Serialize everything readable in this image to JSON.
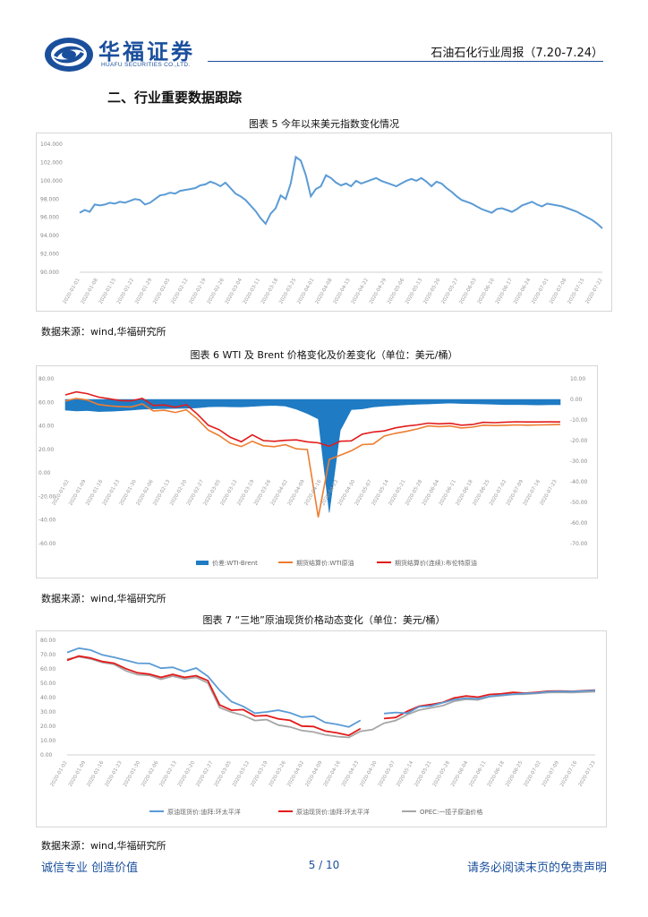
{
  "header": {
    "brand_cn": "华福证券",
    "brand_en": "HUAFU SECURITIES CO.,LTD.",
    "report_title": "石油石化行业周报（7.20-7.24）",
    "logo_color": "#1a4f9c"
  },
  "section_title": "二、行业重要数据跟踪",
  "figures": [
    {
      "title": "图表 5  今年以来美元指数变化情况",
      "source": "数据来源：wind,华福研究所"
    },
    {
      "title": "图表 6 WTI 及 Brent 价格变化及价差变化（单位：美元/桶）",
      "source": "数据来源：wind,华福研究所"
    },
    {
      "title": "图表 7  “三地”原油现货价格动态变化（单位：美元/桶）",
      "source": "数据来源：wind,华福研究所"
    }
  ],
  "footer": {
    "left": "诚信专业  创造价值",
    "page": "5  /  10",
    "right": "请务必阅读末页的免责声明"
  },
  "chart_data": [
    {
      "type": "line",
      "colors": [
        "#5b9bd5"
      ],
      "ylim": [
        90,
        104
      ],
      "yticks": [
        "104.000",
        "102.000",
        "100.000",
        "98.000",
        "96.000",
        "94.000",
        "92.000",
        "90.000"
      ],
      "xticks": [
        "2020-01-01",
        "2020-01-08",
        "2020-01-15",
        "2020-01-22",
        "2020-01-29",
        "2020-02-05",
        "2020-02-12",
        "2020-02-19",
        "2020-02-26",
        "2020-03-04",
        "2020-03-11",
        "2020-03-18",
        "2020-03-25",
        "2020-04-01",
        "2020-04-08",
        "2020-04-15",
        "2020-04-22",
        "2020-04-29",
        "2020-05-06",
        "2020-05-13",
        "2020-05-20",
        "2020-05-27",
        "2020-06-03",
        "2020-06-10",
        "2020-06-17",
        "2020-06-24",
        "2020-07-01",
        "2020-07-08",
        "2020-07-15",
        "2020-07-22"
      ],
      "series": [
        {
          "values": [
            96.5,
            96.8,
            96.6,
            97.4,
            97.3,
            97.4,
            97.6,
            97.5,
            97.7,
            97.6,
            97.8,
            98.0,
            97.9,
            97.4,
            97.6,
            98.0,
            98.4,
            98.5,
            98.7,
            98.6,
            98.9,
            99.0,
            99.1,
            99.2,
            99.5,
            99.6,
            99.9,
            99.7,
            99.4,
            99.8,
            99.2,
            98.6,
            98.3,
            97.9,
            97.3,
            96.7,
            95.9,
            95.3,
            96.4,
            97.0,
            98.4,
            98.0,
            99.7,
            102.6,
            102.2,
            100.6,
            98.3,
            99.1,
            99.4,
            100.6,
            100.3,
            99.8,
            99.5,
            99.7,
            99.4,
            100.0,
            99.7,
            99.9,
            100.1,
            100.3,
            100.0,
            99.8,
            99.6,
            99.4,
            99.7,
            100.0,
            100.2,
            100.0,
            100.3,
            99.9,
            99.4,
            99.9,
            99.7,
            99.2,
            98.8,
            98.3,
            97.9,
            97.7,
            97.5,
            97.2,
            96.9,
            96.7,
            96.5,
            96.9,
            97.0,
            96.8,
            96.6,
            96.9,
            97.3,
            97.5,
            97.7,
            97.4,
            97.2,
            97.5,
            97.4,
            97.3,
            97.2,
            97.0,
            96.8,
            96.6,
            96.3,
            96.0,
            95.7,
            95.3,
            94.8
          ]
        }
      ]
    },
    {
      "type": "line",
      "colors": [
        "#1e7bc4",
        "#ed7d31",
        "#e21b1b"
      ],
      "ylim": [
        -60,
        80
      ],
      "ylim_right": [
        -70,
        10
      ],
      "yticks": [
        "80.00",
        "60.00",
        "40.00",
        "20.00",
        "0.00",
        "-20.00",
        "-40.00",
        "-60.00"
      ],
      "yticks_right": [
        "10.00",
        "0.00",
        "-10.00",
        "-20.00",
        "-30.00",
        "-40.00",
        "-50.00",
        "-60.00",
        "-70.00"
      ],
      "xticks": [
        "2020-01-02",
        "2020-01-09",
        "2020-01-16",
        "2020-01-23",
        "2020-01-30",
        "2020-02-06",
        "2020-02-13",
        "2020-02-20",
        "2020-02-27",
        "2020-03-05",
        "2020-03-12",
        "2020-03-19",
        "2020-03-26",
        "2020-04-02",
        "2020-04-09",
        "2020-04-16",
        "2020-04-23",
        "2020-04-30",
        "2020-05-07",
        "2020-05-14",
        "2020-05-21",
        "2020-05-28",
        "2020-06-04",
        "2020-06-11",
        "2020-06-18",
        "2020-06-25",
        "2020-07-02",
        "2020-07-09",
        "2020-07-16",
        "2020-07-23"
      ],
      "series": [
        {
          "name": "价差:WTI-Brent",
          "values": [
            -5.2,
            -5.6,
            -5.4,
            -5.9,
            -5.8,
            -5.5,
            -5.2,
            -4.8,
            -4.6,
            -4.5,
            -4.4,
            -4.3,
            -4.1,
            -3.6,
            -3.5,
            -3.6,
            -3.7,
            -3.4,
            -3.1,
            -2.9,
            -3.2,
            -4.8,
            -6.9,
            -9.5,
            -55.0,
            -15.0,
            -5.0,
            -4.6,
            -3.7,
            -3.2,
            -2.9,
            -2.6,
            -2.4,
            -2.2,
            -2.0,
            -1.8,
            -2.0,
            -2.1,
            -2.2,
            -2.4,
            -2.5,
            -2.5,
            -2.6,
            -2.7,
            -2.6,
            -2.6
          ]
        },
        {
          "name": "期货结算价:WTI原油",
          "values": [
            61.2,
            63.3,
            62.0,
            58.2,
            57.0,
            56.3,
            56.1,
            58.7,
            52.7,
            53.3,
            51.4,
            53.7,
            45.9,
            36.3,
            31.7,
            25.2,
            22.4,
            27.0,
            23.1,
            22.3,
            24.0,
            20.5,
            19.9,
            -37.6,
            11.5,
            15.1,
            18.8,
            24.1,
            24.6,
            31.4,
            33.7,
            35.3,
            37.4,
            40.0,
            39.4,
            39.9,
            38.2,
            38.9,
            40.6,
            40.3,
            40.5,
            40.8,
            40.6,
            40.8,
            41.0,
            41.3
          ]
        },
        {
          "name": "期货结算价(连续):布伦特原油",
          "values": [
            66.3,
            68.9,
            67.4,
            64.5,
            63.0,
            61.5,
            61.3,
            63.4,
            57.3,
            57.8,
            55.8,
            58.0,
            50.0,
            40.5,
            36.7,
            30.3,
            26.5,
            32.4,
            27.5,
            26.9,
            27.7,
            28.1,
            26.4,
            25.6,
            22.7,
            27.0,
            27.3,
            33.0,
            34.8,
            35.7,
            38.3,
            39.8,
            40.8,
            42.3,
            41.7,
            42.2,
            40.6,
            41.1,
            43.0,
            42.7,
            43.2,
            43.5,
            43.3,
            43.3,
            43.4,
            43.3
          ]
        }
      ]
    },
    {
      "type": "line",
      "colors": [
        "#5b9bd5",
        "#e21b1b",
        "#a6a6a6"
      ],
      "ylim": [
        0,
        80
      ],
      "yticks": [
        "80.00",
        "70.00",
        "60.00",
        "50.00",
        "40.00",
        "30.00",
        "20.00",
        "10.00",
        "0.00"
      ],
      "xticks": [
        "2020-01-02",
        "2020-01-09",
        "2020-01-16",
        "2020-01-23",
        "2020-01-30",
        "2020-02-06",
        "2020-02-13",
        "2020-02-20",
        "2020-02-27",
        "2020-03-05",
        "2020-03-12",
        "2020-03-19",
        "2020-03-26",
        "2020-04-02",
        "2020-04-09",
        "2020-04-16",
        "2020-04-23",
        "2020-04-30",
        "2020-05-07",
        "2020-05-14",
        "2020-05-21",
        "2020-05-28",
        "2020-06-04",
        "2020-06-11",
        "2020-06-18",
        "2020-06-25",
        "2020-07-02",
        "2020-07-09",
        "2020-07-16",
        "2020-07-23"
      ],
      "series": [
        {
          "name": "原油现货价:迪拜:环太平洋",
          "values": [
            71.5,
            74.5,
            73.2,
            69.8,
            68.1,
            66.1,
            64.0,
            63.8,
            60.5,
            61.1,
            58.2,
            60.6,
            54.8,
            45.1,
            37.2,
            33.9,
            29.1,
            30.0,
            31.2,
            29.4,
            26.4,
            27.0,
            22.6,
            21.3,
            19.5,
            24.1,
            null,
            28.9,
            29.6,
            29.1,
            33.6,
            34.2,
            36.4,
            38.7,
            39.6,
            39.1,
            40.8,
            41.8,
            42.3,
            42.9,
            43.2,
            44.1,
            44.3,
            44.2,
            44.6,
            45.0
          ]
        },
        {
          "name": "原油现货价:迪拜:环太平洋",
          "values": [
            66.0,
            69.0,
            67.6,
            65.2,
            64.0,
            60.2,
            57.3,
            56.4,
            54.1,
            56.2,
            54.1,
            55.3,
            51.8,
            34.9,
            31.2,
            31.6,
            27.1,
            27.5,
            25.1,
            24.1,
            20.1,
            19.8,
            16.6,
            15.4,
            13.6,
            18.4,
            null,
            25.4,
            26.1,
            30.5,
            34.0,
            35.2,
            36.6,
            39.8,
            41.1,
            40.3,
            42.2,
            42.6,
            43.6,
            43.1,
            43.7,
            44.5,
            44.6,
            44.4,
            44.8,
            45.2
          ]
        },
        {
          "name": "OPEC:一揽子原油价格",
          "values": [
            66.8,
            68.5,
            67.0,
            64.5,
            63.2,
            58.7,
            56.0,
            55.5,
            52.8,
            55.0,
            53.0,
            54.1,
            50.2,
            33.0,
            29.8,
            27.6,
            24.0,
            24.6,
            20.8,
            19.5,
            17.0,
            16.0,
            14.0,
            12.8,
            12.2,
            16.5,
            17.6,
            22.1,
            24.0,
            28.2,
            31.3,
            32.8,
            34.4,
            37.5,
            38.8,
            38.4,
            40.6,
            41.3,
            42.3,
            42.4,
            42.9,
            43.5,
            43.7,
            43.5,
            43.9,
            44.1
          ]
        }
      ]
    }
  ]
}
